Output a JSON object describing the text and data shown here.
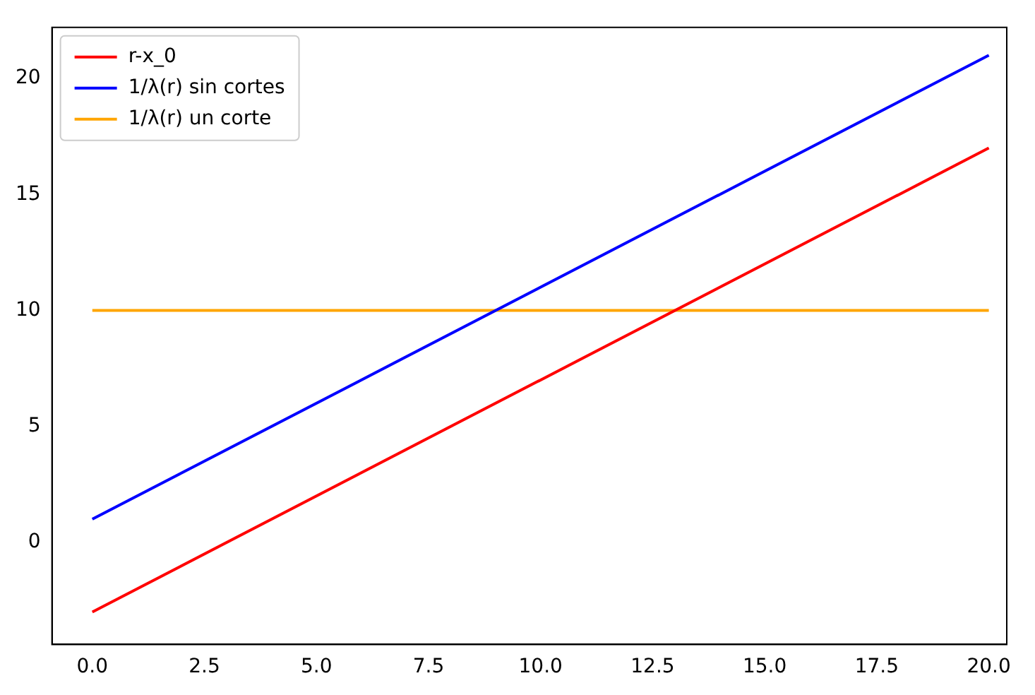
{
  "chart_data": {
    "type": "line",
    "x": [
      0,
      20
    ],
    "series": [
      {
        "name": "r-x_0",
        "color": "#ff0000",
        "values": [
          -3,
          17
        ]
      },
      {
        "name": "1/λ(r) sin cortes",
        "color": "#0000ff",
        "values": [
          1,
          21
        ]
      },
      {
        "name": "1/λ(r) un corte",
        "color": "#ffa500",
        "values": [
          10,
          10
        ]
      }
    ],
    "xlim": [
      -0.9,
      20.4
    ],
    "ylim": [
      -4.4,
      22.2
    ],
    "xticks": [
      {
        "value": 0,
        "label": "0.0"
      },
      {
        "value": 2.5,
        "label": "2.5"
      },
      {
        "value": 5,
        "label": "5.0"
      },
      {
        "value": 7.5,
        "label": "7.5"
      },
      {
        "value": 10,
        "label": "10.0"
      },
      {
        "value": 12.5,
        "label": "12.5"
      },
      {
        "value": 15,
        "label": "15.0"
      },
      {
        "value": 17.5,
        "label": "17.5"
      },
      {
        "value": 20,
        "label": "20.0"
      }
    ],
    "yticks": [
      0,
      5,
      10,
      15,
      20
    ],
    "grid": false,
    "legend": "top left",
    "marker": "none",
    "line_style": "solid"
  }
}
